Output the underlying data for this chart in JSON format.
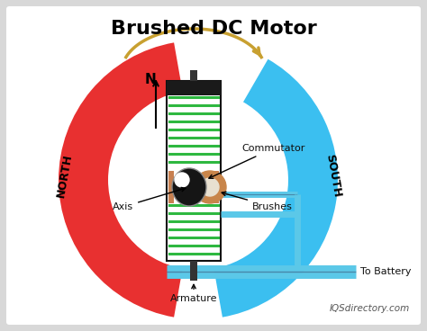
{
  "title": "Brushed DC Motor",
  "background_color": "#d8d8d8",
  "inner_bg": "#ffffff",
  "north_color": "#e83030",
  "south_color": "#3bbff0",
  "armature_fill": "#ffffff",
  "armature_stroke": "#111111",
  "coil_color": "#2eb840",
  "commutator_color": "#c8854a",
  "brush_color": "#c88050",
  "shaft_color": "#333333",
  "arrow_color": "#c8a030",
  "wire_color": "#5bc8e8",
  "wire_dark": "#4888aa",
  "label_color": "#111111",
  "watermark": "IQSdirectory.com",
  "labels": {
    "north": "NORTH",
    "south": "SOUTH",
    "commutator": "Commutator",
    "brushes": "Brushes",
    "axis": "Axis",
    "armature": "Armature",
    "battery": "To Battery",
    "N": "N"
  },
  "figsize": [
    4.74,
    3.68
  ],
  "dpi": 100
}
